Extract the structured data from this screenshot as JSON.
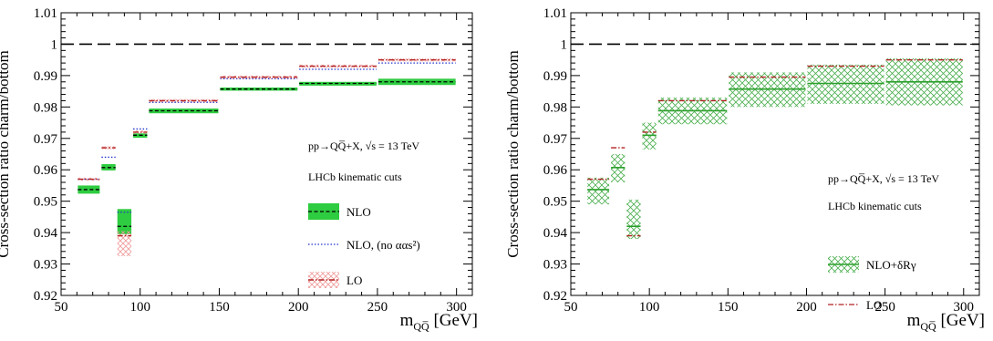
{
  "chart_data": [
    {
      "type": "step-band",
      "ylabel": "Cross-section ratio charm/bottom",
      "xlabel_main": "m",
      "xlabel_sub": "QQ̅",
      "xlabel_unit": "[GeV]",
      "xlim": [
        50,
        310
      ],
      "ylim": [
        0.92,
        1.01
      ],
      "x_ticks": [
        "50",
        "100",
        "150",
        "200",
        "250",
        "300"
      ],
      "y_ticks": [
        "0.92",
        "0.93",
        "0.94",
        "0.95",
        "0.96",
        "0.97",
        "0.98",
        "0.99",
        "1",
        "1.01"
      ],
      "reference_line": 1.0,
      "bins": [
        [
          60,
          75
        ],
        [
          75,
          85
        ],
        [
          85,
          95
        ],
        [
          95,
          105
        ],
        [
          105,
          150
        ],
        [
          150,
          200
        ],
        [
          200,
          250
        ],
        [
          250,
          300
        ]
      ],
      "annotations": {
        "process": "pp→QQ̅+X, √s = 13 TeV",
        "cuts": "LHCb kinematic cuts"
      },
      "series": [
        {
          "name": "NLO",
          "style": "band-solid",
          "color": "#2ecc40",
          "values": [
            0.9537,
            0.9607,
            0.942,
            0.971,
            0.9788,
            0.9857,
            0.9875,
            0.988
          ],
          "lower": [
            0.9524,
            0.9598,
            0.9395,
            0.9702,
            0.978,
            0.9852,
            0.9868,
            0.987
          ],
          "upper": [
            0.955,
            0.9618,
            0.9475,
            0.9716,
            0.9795,
            0.9862,
            0.988,
            0.989
          ]
        },
        {
          "name": "NLO, (no ααs²)",
          "style": "dotted",
          "color": "#2233cc",
          "values": [
            0.957,
            0.964,
            0.9465,
            0.973,
            0.9815,
            0.989,
            0.992,
            0.994
          ]
        },
        {
          "name": "LO",
          "style": "band-hatch",
          "color": "#b22222",
          "values": [
            0.957,
            0.967,
            0.939,
            0.972,
            0.982,
            0.9895,
            0.993,
            0.995
          ],
          "lower": [
            0.9565,
            0.9665,
            0.9325,
            0.9715,
            0.9815,
            0.989,
            0.9925,
            0.9945
          ],
          "upper": [
            0.9575,
            0.9675,
            0.9405,
            0.9725,
            0.9825,
            0.99,
            0.9935,
            0.9955
          ]
        }
      ]
    },
    {
      "type": "step-band",
      "ylabel": "Cross-section ratio charm/bottom",
      "xlabel_main": "m",
      "xlabel_sub": "QQ̅",
      "xlabel_unit": "[GeV]",
      "xlim": [
        50,
        310
      ],
      "ylim": [
        0.92,
        1.01
      ],
      "x_ticks": [
        "50",
        "100",
        "150",
        "200",
        "250",
        "300"
      ],
      "y_ticks": [
        "0.92",
        "0.93",
        "0.94",
        "0.95",
        "0.96",
        "0.97",
        "0.98",
        "0.99",
        "1",
        "1.01"
      ],
      "reference_line": 1.0,
      "bins": [
        [
          60,
          75
        ],
        [
          75,
          85
        ],
        [
          85,
          95
        ],
        [
          95,
          105
        ],
        [
          105,
          150
        ],
        [
          150,
          200
        ],
        [
          200,
          250
        ],
        [
          250,
          300
        ]
      ],
      "annotations": {
        "process": "pp→QQ̅+X, √s = 13 TeV",
        "cuts": "LHCb kinematic cuts"
      },
      "series": [
        {
          "name": "NLO+δRγ",
          "style": "band-hatch",
          "color": "#2ca02c",
          "values": [
            0.9537,
            0.9607,
            0.942,
            0.971,
            0.9788,
            0.9857,
            0.9875,
            0.988
          ],
          "lower": [
            0.949,
            0.956,
            0.938,
            0.9665,
            0.9745,
            0.98,
            0.981,
            0.9805
          ],
          "upper": [
            0.9575,
            0.965,
            0.9505,
            0.975,
            0.983,
            0.991,
            0.9935,
            0.9955
          ]
        },
        {
          "name": "LO",
          "style": "dashdot",
          "color": "#b22222",
          "values": [
            0.957,
            0.967,
            0.939,
            0.972,
            0.982,
            0.9895,
            0.993,
            0.995
          ]
        }
      ]
    }
  ]
}
